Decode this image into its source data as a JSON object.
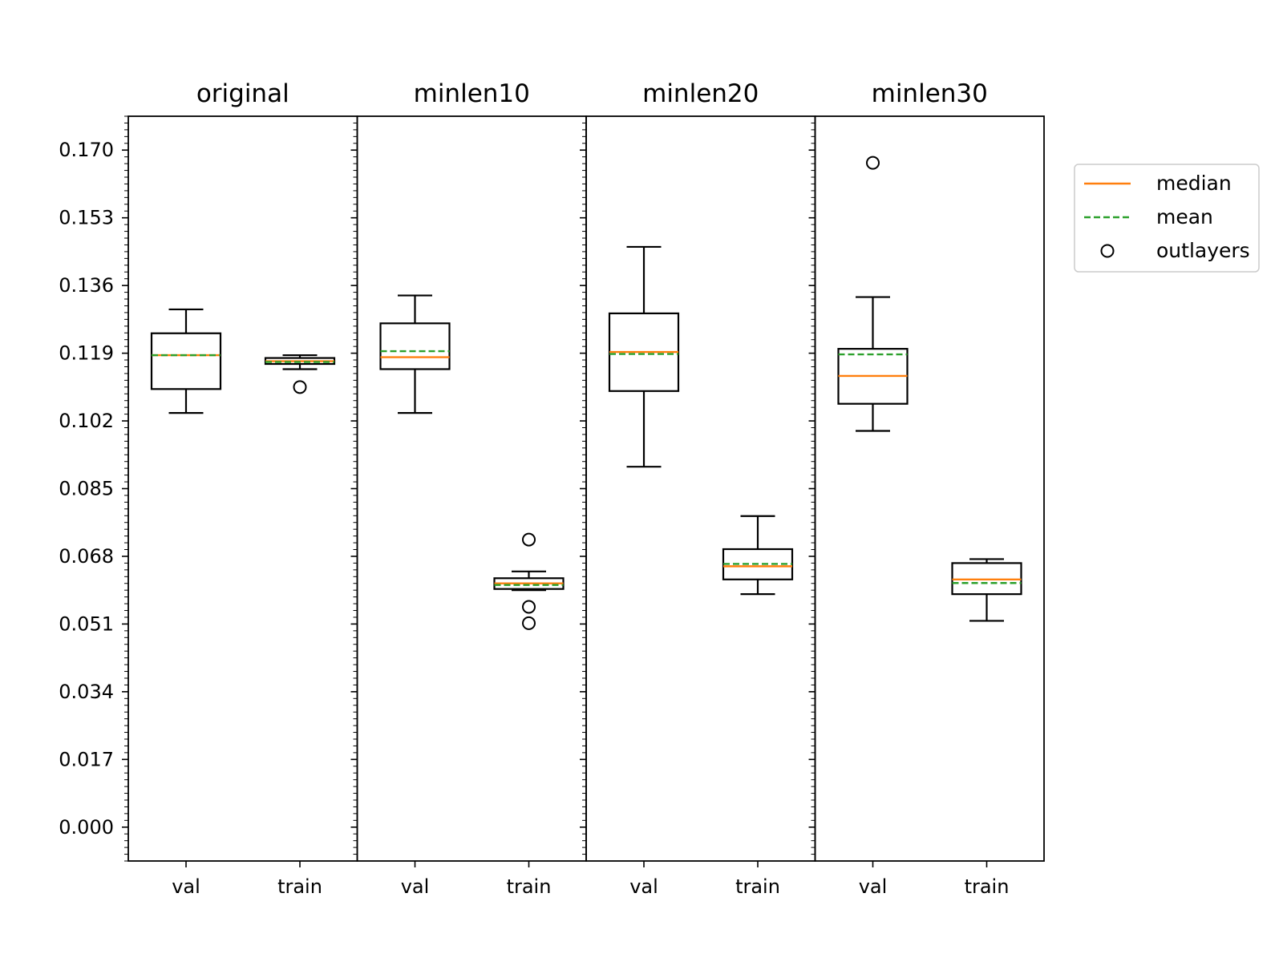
{
  "chart_data": {
    "type": "box",
    "panels": [
      {
        "title": "original",
        "categories": [
          "val",
          "train"
        ],
        "boxes": [
          {
            "category": "val",
            "whislo": 0.104,
            "q1": 0.11,
            "med": 0.1185,
            "mean": 0.1185,
            "q3": 0.124,
            "whishi": 0.13,
            "fliers": []
          },
          {
            "category": "train",
            "whislo": 0.115,
            "q1": 0.1163,
            "med": 0.117,
            "mean": 0.1168,
            "q3": 0.1178,
            "whishi": 0.1185,
            "fliers": [
              0.1105
            ]
          }
        ]
      },
      {
        "title": "minlen10",
        "categories": [
          "val",
          "train"
        ],
        "boxes": [
          {
            "category": "val",
            "whislo": 0.104,
            "q1": 0.115,
            "med": 0.118,
            "mean": 0.1195,
            "q3": 0.1265,
            "whishi": 0.1335,
            "fliers": []
          },
          {
            "category": "train",
            "whislo": 0.0595,
            "q1": 0.0598,
            "med": 0.0612,
            "mean": 0.0608,
            "q3": 0.0625,
            "whishi": 0.0642,
            "fliers": [
              0.0722,
              0.0553,
              0.0512
            ]
          }
        ]
      },
      {
        "title": "minlen20",
        "categories": [
          "val",
          "train"
        ],
        "boxes": [
          {
            "category": "val",
            "whislo": 0.0905,
            "q1": 0.1095,
            "med": 0.1193,
            "mean": 0.1188,
            "q3": 0.129,
            "whishi": 0.1457,
            "fliers": []
          },
          {
            "category": "train",
            "whislo": 0.0585,
            "q1": 0.0622,
            "med": 0.0655,
            "mean": 0.0661,
            "q3": 0.0698,
            "whishi": 0.0781,
            "fliers": []
          }
        ]
      },
      {
        "title": "minlen30",
        "categories": [
          "val",
          "train"
        ],
        "boxes": [
          {
            "category": "val",
            "whislo": 0.0995,
            "q1": 0.1063,
            "med": 0.1133,
            "mean": 0.1187,
            "q3": 0.1201,
            "whishi": 0.1331,
            "fliers": [
              0.1668
            ]
          },
          {
            "category": "train",
            "whislo": 0.0518,
            "q1": 0.0585,
            "med": 0.0622,
            "mean": 0.0613,
            "q3": 0.0663,
            "whishi": 0.0673,
            "fliers": []
          }
        ]
      }
    ],
    "yticks": [
      "0.000",
      "0.017",
      "0.034",
      "0.051",
      "0.068",
      "0.085",
      "0.102",
      "0.119",
      "0.136",
      "0.153",
      "0.170"
    ],
    "ylim": [
      -0.0085,
      0.1785
    ],
    "legend": {
      "placement": "outside-right",
      "entries": [
        {
          "label": "median",
          "style": "solid-line",
          "color": "#ff7f0e"
        },
        {
          "label": "mean",
          "style": "dashed-line",
          "color": "#2ca02c"
        },
        {
          "label": "outlayers",
          "style": "circle-marker",
          "color": "#000000"
        }
      ]
    },
    "colors": {
      "median": "#ff7f0e",
      "mean": "#2ca02c",
      "box": "#000000"
    },
    "grid": false
  }
}
